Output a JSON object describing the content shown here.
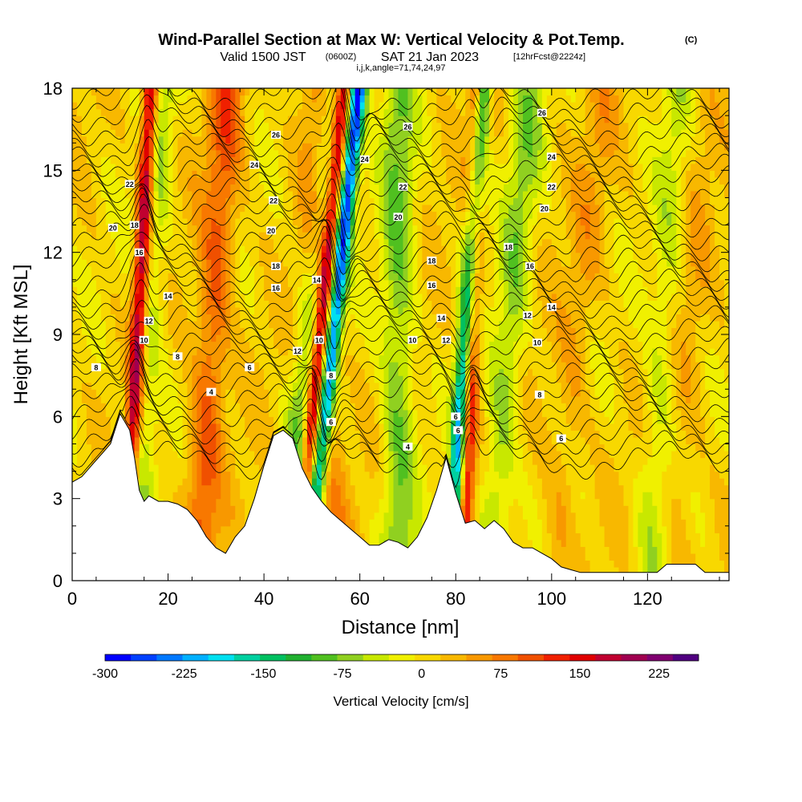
{
  "title": {
    "main": "Wind-Parallel Section at Max W: Vertical Velocity & Pot.Temp.",
    "copyright": "(C)",
    "valid_prefix": "Valid 1500 JST",
    "valid_utc": "(0600Z)",
    "valid_date": "SAT 21 Jan 2023",
    "forecast": "[12hrFcst@2224z]",
    "indices": "i,j,k,angle=71,74,24,97"
  },
  "chart_data": {
    "type": "heatmap",
    "xlabel": "Distance [nm]",
    "ylabel": "Height [Kft MSL]",
    "xlim": [
      0,
      137
    ],
    "ylim": [
      0,
      18
    ],
    "x_ticks": [
      "0",
      "20",
      "40",
      "60",
      "80",
      "100",
      "120"
    ],
    "y_ticks": [
      "0",
      "3",
      "6",
      "9",
      "12",
      "15",
      "18"
    ],
    "x_tick_values": [
      0,
      20,
      40,
      60,
      80,
      100,
      120
    ],
    "y_tick_values": [
      0,
      3,
      6,
      9,
      12,
      15,
      18
    ],
    "terrain_kft": [
      [
        0,
        3.6
      ],
      [
        2,
        3.8
      ],
      [
        4,
        4.2
      ],
      [
        6,
        4.6
      ],
      [
        8,
        5.0
      ],
      [
        10,
        6.1
      ],
      [
        11,
        5.8
      ],
      [
        12,
        5.5
      ],
      [
        13,
        4.5
      ],
      [
        14,
        3.3
      ],
      [
        15,
        2.9
      ],
      [
        16,
        3.1
      ],
      [
        18,
        2.9
      ],
      [
        20,
        2.9
      ],
      [
        22,
        2.8
      ],
      [
        24,
        2.6
      ],
      [
        26,
        2.2
      ],
      [
        28,
        1.6
      ],
      [
        30,
        1.2
      ],
      [
        32,
        1.0
      ],
      [
        34,
        1.6
      ],
      [
        36,
        2.0
      ],
      [
        38,
        3.0
      ],
      [
        40,
        4.2
      ],
      [
        42,
        5.3
      ],
      [
        44,
        5.5
      ],
      [
        46,
        5.2
      ],
      [
        48,
        4.1
      ],
      [
        50,
        3.4
      ],
      [
        52,
        2.9
      ],
      [
        54,
        2.5
      ],
      [
        56,
        2.2
      ],
      [
        58,
        1.9
      ],
      [
        60,
        1.6
      ],
      [
        62,
        1.3
      ],
      [
        64,
        1.3
      ],
      [
        66,
        1.5
      ],
      [
        68,
        1.4
      ],
      [
        70,
        1.2
      ],
      [
        72,
        1.6
      ],
      [
        74,
        2.3
      ],
      [
        76,
        3.3
      ],
      [
        78,
        4.5
      ],
      [
        80,
        3.2
      ],
      [
        82,
        2.1
      ],
      [
        84,
        2.2
      ],
      [
        86,
        1.9
      ],
      [
        88,
        2.2
      ],
      [
        90,
        1.9
      ],
      [
        92,
        1.4
      ],
      [
        94,
        1.2
      ],
      [
        96,
        1.2
      ],
      [
        98,
        1.0
      ],
      [
        100,
        0.8
      ],
      [
        102,
        0.5
      ],
      [
        104,
        0.4
      ],
      [
        106,
        0.3
      ],
      [
        110,
        0.3
      ],
      [
        114,
        0.3
      ],
      [
        118,
        0.3
      ],
      [
        122,
        0.3
      ],
      [
        124,
        0.6
      ],
      [
        126,
        0.6
      ],
      [
        130,
        0.6
      ],
      [
        132,
        0.3
      ],
      [
        137,
        0.3
      ]
    ],
    "updraft_columns": [
      {
        "x_base": 11,
        "lean": 0.05,
        "peak_cms": 220
      },
      {
        "x_base": 47,
        "lean": 0.09,
        "peak_cms": 230
      },
      {
        "x_base": 81.5,
        "lean": 0.03,
        "peak_cms": 220
      },
      {
        "x_base": 26,
        "lean": 0.06,
        "peak_cms": 110
      },
      {
        "x_base": 55,
        "lean": -0.05,
        "peak_cms": 60
      },
      {
        "x_base": 100,
        "lean": 0.1,
        "peak_cms": 40
      },
      {
        "x_base": 126,
        "lean": 0.05,
        "peak_cms": 30
      }
    ],
    "downdraft_columns": [
      {
        "x_base": 44,
        "lean": 0.12,
        "peak_cms": -130
      },
      {
        "x_base": 49,
        "lean": 0.1,
        "peak_cms": -250
      },
      {
        "x_base": 79,
        "lean": 0.06,
        "peak_cms": -290
      },
      {
        "x_base": 12,
        "lean": 0.06,
        "peak_cms": -90
      },
      {
        "x_base": 68,
        "lean": 0.0,
        "peak_cms": -110
      },
      {
        "x_base": 87,
        "lean": 0.08,
        "peak_cms": -90
      },
      {
        "x_base": 120,
        "lean": 0.06,
        "peak_cms": -60
      }
    ],
    "theta_contour_labels": [
      {
        "value": "26",
        "x": 42.5,
        "y": 16.3
      },
      {
        "value": "26",
        "x": 70,
        "y": 16.6
      },
      {
        "value": "26",
        "x": 98,
        "y": 17.1
      },
      {
        "value": "24",
        "x": 38,
        "y": 15.2
      },
      {
        "value": "24",
        "x": 61,
        "y": 15.4
      },
      {
        "value": "24",
        "x": 100,
        "y": 15.5
      },
      {
        "value": "22",
        "x": 12,
        "y": 14.5
      },
      {
        "value": "22",
        "x": 42,
        "y": 13.9
      },
      {
        "value": "22",
        "x": 69,
        "y": 14.4
      },
      {
        "value": "22",
        "x": 100,
        "y": 14.4
      },
      {
        "value": "20",
        "x": 8.5,
        "y": 12.9
      },
      {
        "value": "20",
        "x": 41.5,
        "y": 12.8
      },
      {
        "value": "20",
        "x": 68,
        "y": 13.3
      },
      {
        "value": "20",
        "x": 98.5,
        "y": 13.6
      },
      {
        "value": "18",
        "x": 13,
        "y": 13.0
      },
      {
        "value": "18",
        "x": 42.5,
        "y": 11.5
      },
      {
        "value": "18",
        "x": 75,
        "y": 11.7
      },
      {
        "value": "18",
        "x": 91,
        "y": 12.2
      },
      {
        "value": "16",
        "x": 14,
        "y": 12.0
      },
      {
        "value": "16",
        "x": 42.5,
        "y": 10.7
      },
      {
        "value": "16",
        "x": 75,
        "y": 10.8
      },
      {
        "value": "16",
        "x": 95.5,
        "y": 11.5
      },
      {
        "value": "14",
        "x": 20,
        "y": 10.4
      },
      {
        "value": "14",
        "x": 51,
        "y": 11.0
      },
      {
        "value": "14",
        "x": 77,
        "y": 9.6
      },
      {
        "value": "14",
        "x": 100,
        "y": 10.0
      },
      {
        "value": "12",
        "x": 16,
        "y": 9.5
      },
      {
        "value": "12",
        "x": 47,
        "y": 8.4
      },
      {
        "value": "12",
        "x": 78,
        "y": 8.8
      },
      {
        "value": "12",
        "x": 95,
        "y": 9.7
      },
      {
        "value": "10",
        "x": 15,
        "y": 8.8
      },
      {
        "value": "10",
        "x": 51.5,
        "y": 8.8
      },
      {
        "value": "10",
        "x": 71,
        "y": 8.8
      },
      {
        "value": "10",
        "x": 97,
        "y": 8.7
      },
      {
        "value": "8",
        "x": 5,
        "y": 7.8
      },
      {
        "value": "8",
        "x": 22,
        "y": 8.2
      },
      {
        "value": "8",
        "x": 54,
        "y": 7.5
      },
      {
        "value": "8",
        "x": 97.5,
        "y": 6.8
      },
      {
        "value": "6",
        "x": 37,
        "y": 7.8
      },
      {
        "value": "6",
        "x": 54,
        "y": 5.8
      },
      {
        "value": "6",
        "x": 80,
        "y": 6.0
      },
      {
        "value": "6",
        "x": 80.5,
        "y": 5.5
      },
      {
        "value": "6",
        "x": 102,
        "y": 5.2
      },
      {
        "value": "4",
        "x": 29,
        "y": 6.9
      },
      {
        "value": "4",
        "x": 70,
        "y": 4.9
      }
    ],
    "colorbar": {
      "label": "Vertical Velocity [cm/s]",
      "ticks": [
        "-300",
        "-225",
        "-150",
        "-75",
        "0",
        "75",
        "150",
        "225"
      ],
      "tick_values": [
        -300,
        -225,
        -150,
        -75,
        0,
        75,
        150,
        225
      ],
      "range": [
        -300,
        262.5
      ],
      "colors": [
        "#0000ff",
        "#0040ff",
        "#0078ff",
        "#00b0ff",
        "#00e0f0",
        "#00d0a0",
        "#00c060",
        "#20b030",
        "#50c020",
        "#90d020",
        "#c8e800",
        "#f0f000",
        "#f8d800",
        "#f8b800",
        "#f89800",
        "#f87800",
        "#f05000",
        "#f02000",
        "#e00000",
        "#c00030",
        "#a00050",
        "#800070",
        "#500080"
      ]
    }
  }
}
